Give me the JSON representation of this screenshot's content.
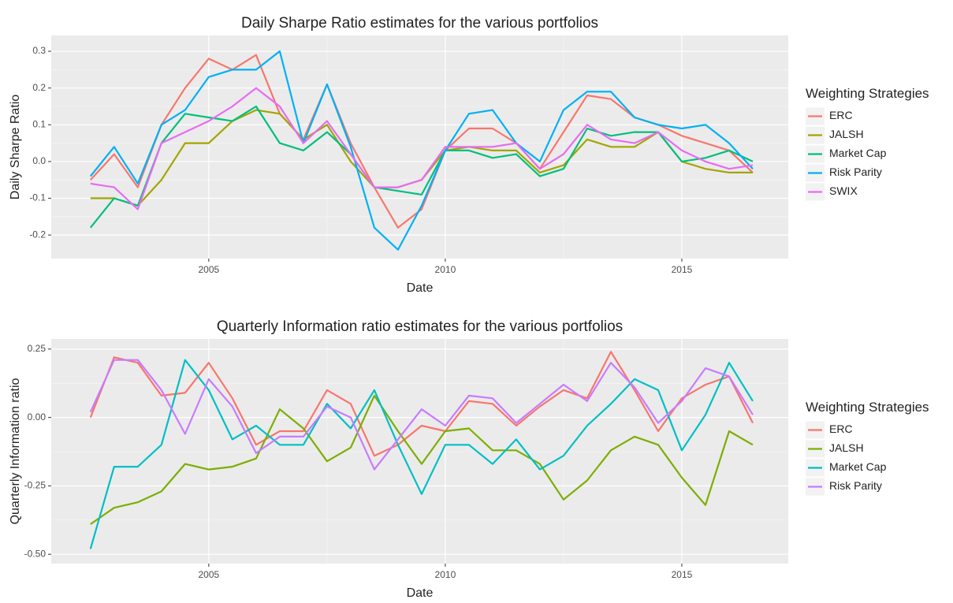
{
  "chart_data": [
    {
      "type": "line",
      "title": "Daily Sharpe Ratio estimates for the various portfolios",
      "x_label": "Date",
      "y_label": "Daily Sharpe Ratio",
      "legend_title": "Weighting Strategies",
      "x": [
        2002.5,
        2003,
        2003.5,
        2004,
        2004.5,
        2005,
        2005.5,
        2006,
        2006.5,
        2007,
        2007.5,
        2008,
        2008.5,
        2009,
        2009.5,
        2010,
        2010.5,
        2011,
        2011.5,
        2012,
        2012.5,
        2013,
        2013.5,
        2014,
        2014.5,
        2015,
        2015.5,
        2016,
        2016.5
      ],
      "xlim": [
        2001.67,
        2017.25
      ],
      "xticks": [
        2005,
        2010,
        2015
      ],
      "ylim": [
        -0.264,
        0.343
      ],
      "yticks": [
        -0.2,
        -0.1,
        {
          "value": 0,
          "label": "0.0"
        },
        0.1,
        0.2,
        0.3
      ],
      "grid": true,
      "series": [
        {
          "name": "ERC",
          "color": "#F8766D",
          "values": [
            -0.05,
            0.02,
            -0.07,
            0.1,
            0.2,
            0.28,
            0.25,
            0.29,
            0.13,
            0.06,
            0.21,
            0.05,
            -0.07,
            -0.18,
            -0.13,
            0.03,
            0.09,
            0.09,
            0.05,
            -0.02,
            0.08,
            0.18,
            0.17,
            0.12,
            0.1,
            0.07,
            0.05,
            0.03,
            -0.03
          ]
        },
        {
          "name": "JALSH",
          "color": "#A3A500",
          "values": [
            -0.1,
            -0.1,
            -0.12,
            -0.05,
            0.05,
            0.05,
            0.11,
            0.14,
            0.13,
            0.06,
            0.1,
            0.0,
            -0.07,
            -0.07,
            -0.05,
            0.03,
            0.04,
            0.03,
            0.03,
            -0.03,
            -0.01,
            0.06,
            0.04,
            0.04,
            0.08,
            0.0,
            -0.02,
            -0.03,
            -0.03
          ]
        },
        {
          "name": "Market Cap",
          "color": "#00BF7D",
          "values": [
            -0.18,
            -0.1,
            -0.12,
            0.05,
            0.13,
            0.12,
            0.11,
            0.15,
            0.05,
            0.03,
            0.08,
            0.02,
            -0.07,
            -0.08,
            -0.09,
            0.03,
            0.03,
            0.01,
            0.02,
            -0.04,
            -0.02,
            0.09,
            0.07,
            0.08,
            0.08,
            0.0,
            0.01,
            0.03,
            0.0
          ]
        },
        {
          "name": "Risk Parity",
          "color": "#00B0F6",
          "values": [
            -0.04,
            0.04,
            -0.06,
            0.1,
            0.14,
            0.23,
            0.25,
            0.25,
            0.3,
            0.05,
            0.21,
            0.04,
            -0.18,
            -0.24,
            -0.12,
            0.03,
            0.13,
            0.14,
            0.05,
            0.0,
            0.14,
            0.19,
            0.19,
            0.12,
            0.1,
            0.09,
            0.1,
            0.05,
            -0.02
          ]
        },
        {
          "name": "SWIX",
          "color": "#E76BF3",
          "values": [
            -0.06,
            -0.07,
            -0.13,
            0.05,
            0.08,
            0.11,
            0.15,
            0.2,
            0.15,
            0.05,
            0.11,
            0.02,
            -0.07,
            -0.07,
            -0.05,
            0.04,
            0.04,
            0.04,
            0.05,
            -0.02,
            0.02,
            0.1,
            0.06,
            0.05,
            0.08,
            0.03,
            0.0,
            -0.02,
            -0.01
          ]
        }
      ]
    },
    {
      "type": "line",
      "title": "Quarterly Information ratio estimates for the various portfolios",
      "x_label": "Date",
      "y_label": "Quarterly Information ratio",
      "legend_title": "Weighting Strategies",
      "x": [
        2002.5,
        2003,
        2003.5,
        2004,
        2004.5,
        2005,
        2005.5,
        2006,
        2006.5,
        2007,
        2007.5,
        2008,
        2008.5,
        2009,
        2009.5,
        2010,
        2010.5,
        2011,
        2011.5,
        2012,
        2012.5,
        2013,
        2013.5,
        2014,
        2014.5,
        2015,
        2015.5,
        2016,
        2016.5
      ],
      "xlim": [
        2001.67,
        2017.25
      ],
      "xticks": [
        2005,
        2010,
        2015
      ],
      "ylim": [
        -0.534,
        0.287
      ],
      "yticks": [
        {
          "value": -0.5,
          "label": "-0.50"
        },
        -0.25,
        {
          "value": 0,
          "label": "0.00"
        },
        0.25
      ],
      "grid": true,
      "series": [
        {
          "name": "ERC",
          "color": "#F8766D",
          "values": [
            0.0,
            0.22,
            0.2,
            0.08,
            0.09,
            0.2,
            0.07,
            -0.1,
            -0.05,
            -0.05,
            0.1,
            0.05,
            -0.14,
            -0.1,
            -0.03,
            -0.05,
            0.06,
            0.05,
            -0.03,
            0.04,
            0.1,
            0.07,
            0.24,
            0.1,
            -0.05,
            0.07,
            0.12,
            0.15,
            -0.02
          ]
        },
        {
          "name": "JALSH",
          "color": "#7CAE00",
          "values": [
            -0.39,
            -0.33,
            -0.31,
            -0.27,
            -0.17,
            -0.19,
            -0.18,
            -0.15,
            0.03,
            -0.04,
            -0.16,
            -0.11,
            0.08,
            -0.05,
            -0.17,
            -0.05,
            -0.04,
            -0.12,
            -0.12,
            -0.17,
            -0.3,
            -0.23,
            -0.12,
            -0.07,
            -0.1,
            -0.22,
            -0.32,
            -0.05,
            -0.1
          ]
        },
        {
          "name": "Market Cap",
          "color": "#00BFC4",
          "values": [
            -0.48,
            -0.18,
            -0.18,
            -0.1,
            0.21,
            0.1,
            -0.08,
            -0.03,
            -0.1,
            -0.1,
            0.05,
            -0.04,
            0.1,
            -0.1,
            -0.28,
            -0.1,
            -0.1,
            -0.17,
            -0.08,
            -0.19,
            -0.14,
            -0.03,
            0.05,
            0.14,
            0.1,
            -0.12,
            0.01,
            0.2,
            0.06
          ]
        },
        {
          "name": "Risk Parity",
          "color": "#C77CFF",
          "values": [
            0.02,
            0.21,
            0.21,
            0.1,
            -0.06,
            0.14,
            0.04,
            -0.13,
            -0.07,
            -0.07,
            0.04,
            0.0,
            -0.19,
            -0.08,
            0.03,
            -0.03,
            0.08,
            0.07,
            -0.02,
            0.05,
            0.12,
            0.06,
            0.2,
            0.11,
            -0.02,
            0.06,
            0.18,
            0.15,
            0.01
          ]
        }
      ]
    }
  ]
}
